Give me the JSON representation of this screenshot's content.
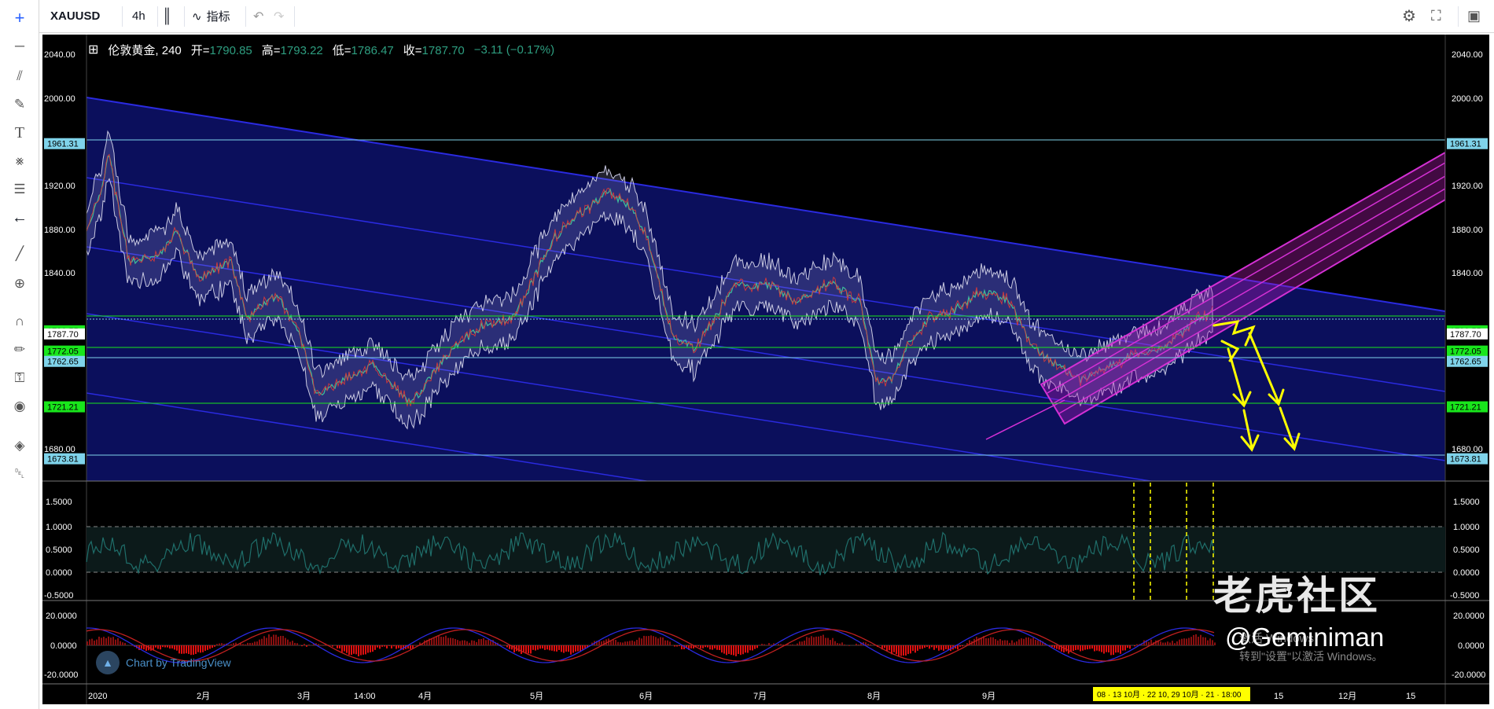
{
  "toolbar": {
    "symbol": "XAUUSD",
    "interval": "4h",
    "indicators_label": "指标"
  },
  "legend": {
    "name": "伦敦黄金, 240",
    "open_label": "开=",
    "open": "1790.85",
    "high_label": "高=",
    "high": "1793.22",
    "low_label": "低=",
    "low": "1786.47",
    "close_label": "收=",
    "close": "1787.70",
    "change": "−3.11 (−0.17%)"
  },
  "price_axis": [
    "2040.00",
    "2000.00",
    "1920.00",
    "1880.00",
    "1840.00",
    "1680.00"
  ],
  "price_badges": [
    {
      "text": "1961.31",
      "color": "#7fd3ea",
      "price": 1961.31
    },
    {
      "text": "1790.55",
      "color": "#19e61c",
      "price": 1790.55
    },
    {
      "text": "1787.70",
      "color": "#ffffff",
      "price": 1787.7
    },
    {
      "text": "1772.05",
      "color": "#19e61c",
      "price": 1772.05
    },
    {
      "text": "1762.65",
      "color": "#7fd3ea",
      "price": 1762.65
    },
    {
      "text": "1721.21",
      "color": "#19e61c",
      "price": 1721.21
    },
    {
      "text": "1673.81",
      "color": "#7fd3ea",
      "price": 1673.81
    }
  ],
  "osc_axis": [
    "1.5000",
    "1.0000",
    "0.5000",
    "0.0000",
    "-0.5000"
  ],
  "macd_axis": [
    "20.0000",
    "0.0000",
    "-20.0000"
  ],
  "time_axis": [
    "2020",
    "2月",
    "3月",
    "14:00",
    "4月",
    "5月",
    "6月",
    "7月",
    "8月",
    "9月",
    "15",
    "12月",
    "15"
  ],
  "time_highlight": "08 · 13 10月 · 22 10, 29 10月 · 21 · 18:00",
  "brand_text": "Chart by TradingView",
  "watermark": "老虎社区",
  "author": "@Geminiman",
  "activate_line1": "激活 Windows",
  "activate_line2": "转到\"设置\"以激活 Windows。",
  "colors": {
    "channel_fill": "#0b0f5c",
    "channel_line": "#2a2ae0",
    "pitchfork": "#d430d4",
    "arrow": "#ffff00",
    "osc_line": "#1f6e6a",
    "macd_bar": "#e01010"
  }
}
